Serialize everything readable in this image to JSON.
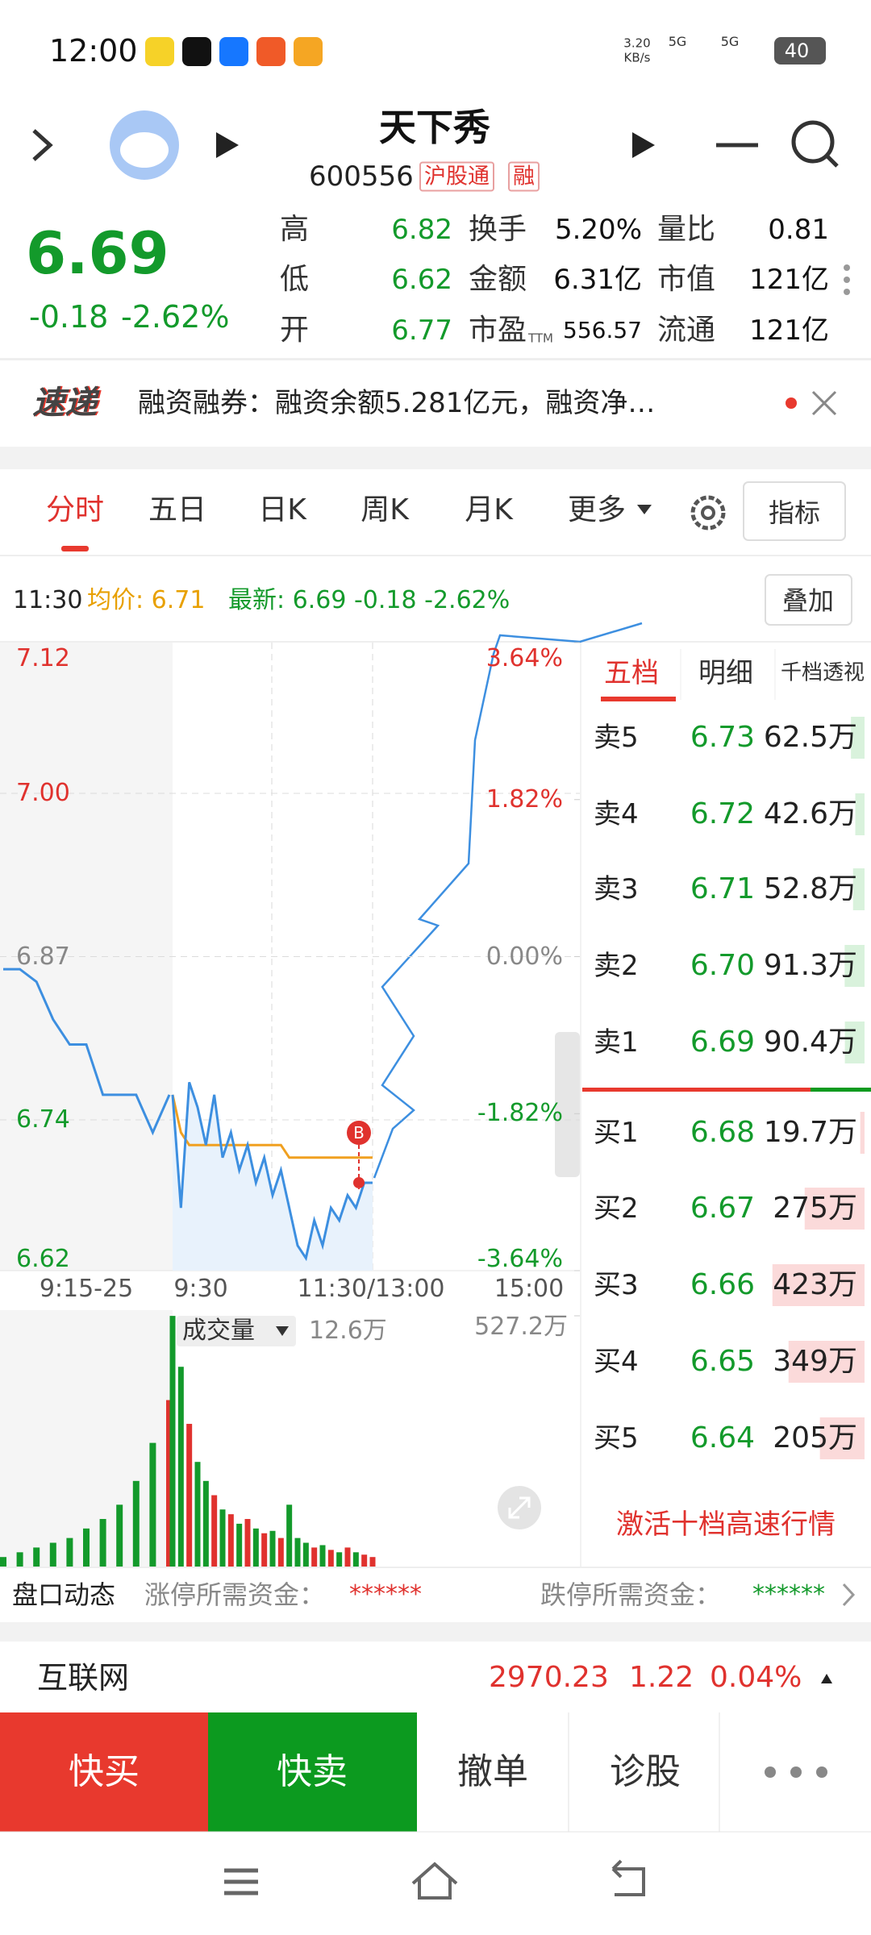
{
  "status_bar": {
    "time": "12:00",
    "net_speed": "3.20",
    "net_unit": "KB/s",
    "signal_1": "5G",
    "signal_2": "5G",
    "battery": "40"
  },
  "header": {
    "title": "天下秀",
    "code": "600556",
    "badges": [
      "沪股通",
      "融"
    ]
  },
  "quote": {
    "price": "6.69",
    "change": "-0.18",
    "change_pct": "-2.62%",
    "color": "#139a2b",
    "stats": [
      {
        "label": "高",
        "value": "6.82",
        "color": "#139a2b"
      },
      {
        "label": "换手",
        "value": "5.20%"
      },
      {
        "label": "量比",
        "value": "0.81"
      },
      {
        "label": "低",
        "value": "6.62",
        "color": "#139a2b"
      },
      {
        "label": "金额",
        "value": "6.31亿"
      },
      {
        "label": "市值",
        "value": "121亿"
      },
      {
        "label": "开",
        "value": "6.77",
        "color": "#139a2b"
      },
      {
        "label": "市盈",
        "sub": "TTM",
        "value": "556.57"
      },
      {
        "label": "流通",
        "value": "121亿"
      }
    ]
  },
  "news": {
    "tag": "速递",
    "text": "融资融券：融资余额5.281亿元，融资净…"
  },
  "tabs": [
    "分时",
    "五日",
    "日K",
    "周K",
    "月K",
    "更多"
  ],
  "indicator_button": "指标",
  "info": {
    "time": "11:30",
    "avg": "均价: 6.71",
    "latest": "最新: 6.69 -0.18 -2.62%",
    "overlay_button": "叠加"
  },
  "intraday": {
    "ylim": [
      6.62,
      7.12
    ],
    "yticks": [
      7.12,
      {
        "value": 7,
        "label": "7.00"
      },
      6.87,
      6.74,
      6.62
    ],
    "y2lim": [
      -3.64,
      3.64
    ],
    "y2ticks": [
      {
        "value": 3.64,
        "label": "3.64%"
      },
      {
        "value": 1.82,
        "label": "1.82%"
      },
      {
        "value": 0,
        "label": "0.00%"
      },
      {
        "value": -1.82,
        "label": "-1.82%"
      },
      {
        "value": -3.64,
        "label": "-3.64%"
      }
    ],
    "up_color": "#e0322e",
    "down_color": "#139a2b",
    "flat_color": "#888888",
    "x_labels": [
      "9:15-25",
      "9:30",
      "11:30/13:00",
      "15:00"
    ],
    "auction_prices": [
      6.86,
      6.86,
      6.85,
      6.82,
      6.8,
      6.8,
      6.76,
      6.76,
      6.76,
      6.73,
      6.76
    ],
    "prices": [
      6.76,
      6.67,
      6.77,
      6.75,
      6.72,
      6.76,
      6.71,
      6.73,
      6.7,
      6.72,
      6.69,
      6.71,
      6.68,
      6.7,
      6.67,
      6.64,
      6.63,
      6.66,
      6.64,
      6.67,
      6.66,
      6.68,
      6.67,
      6.69,
      6.69
    ],
    "avg_prices": [
      6.76,
      6.73,
      6.72,
      6.72,
      6.72,
      6.72,
      6.72,
      6.72,
      6.72,
      6.72,
      6.72,
      6.72,
      6.72,
      6.72,
      6.71,
      6.71,
      6.71,
      6.71,
      6.71,
      6.71,
      6.71,
      6.71,
      6.71,
      6.71,
      6.71
    ],
    "price_color": "#3d8fe0",
    "avg_color": "#f0a020",
    "trade_marker": "B",
    "volume_label": "成交量",
    "volume_current": "12.6万",
    "volume_ylim": [
      0,
      527.2
    ],
    "volume_yticks": [
      {
        "value": 527.2,
        "label": "527.2万"
      }
    ],
    "auction_volumes": [
      20,
      30,
      40,
      50,
      60,
      80,
      100,
      130,
      180,
      260,
      350
    ],
    "volumes": [
      527,
      420,
      300,
      220,
      180,
      150,
      120,
      110,
      90,
      100,
      80,
      70,
      75,
      60,
      130,
      60,
      50,
      40,
      45,
      35,
      30,
      40,
      30,
      25,
      20
    ]
  },
  "order_book": {
    "tabs": [
      "五档",
      "明细",
      "千档透视"
    ],
    "asks": [
      {
        "label": "卖5",
        "price": "6.73",
        "volume": 62.5,
        "volume_label": "62.5万"
      },
      {
        "label": "卖4",
        "price": "6.72",
        "volume": 42.6,
        "volume_label": "42.6万"
      },
      {
        "label": "卖3",
        "price": "6.71",
        "volume": 52.8,
        "volume_label": "52.8万"
      },
      {
        "label": "卖2",
        "price": "6.70",
        "volume": 91.3,
        "volume_label": "91.3万"
      },
      {
        "label": "卖1",
        "price": "6.69",
        "volume": 90.4,
        "volume_label": "90.4万"
      }
    ],
    "bids": [
      {
        "label": "买1",
        "price": "6.68",
        "volume": 19.7,
        "volume_label": "19.7万"
      },
      {
        "label": "买2",
        "price": "6.67",
        "volume": 275,
        "volume_label": "275万"
      },
      {
        "label": "买3",
        "price": "6.66",
        "volume": 423,
        "volume_label": "423万"
      },
      {
        "label": "买4",
        "price": "6.65",
        "volume": 349,
        "volume_label": "349万"
      },
      {
        "label": "买5",
        "price": "6.64",
        "volume": 205,
        "volume_label": "205万"
      }
    ],
    "upgrade_button": "激活十档高速行情"
  },
  "order_flow": {
    "title": "盘口动态",
    "limit_up_label": "涨停所需资金：",
    "limit_up_value": "******",
    "limit_down_label": "跌停所需资金：",
    "limit_down_value": "******"
  },
  "sector": {
    "name": "互联网",
    "index": "2970.23",
    "change": "1.22",
    "change_pct": "0.04%"
  },
  "actions": [
    "快买",
    "快卖",
    "撤单",
    "诊股"
  ]
}
